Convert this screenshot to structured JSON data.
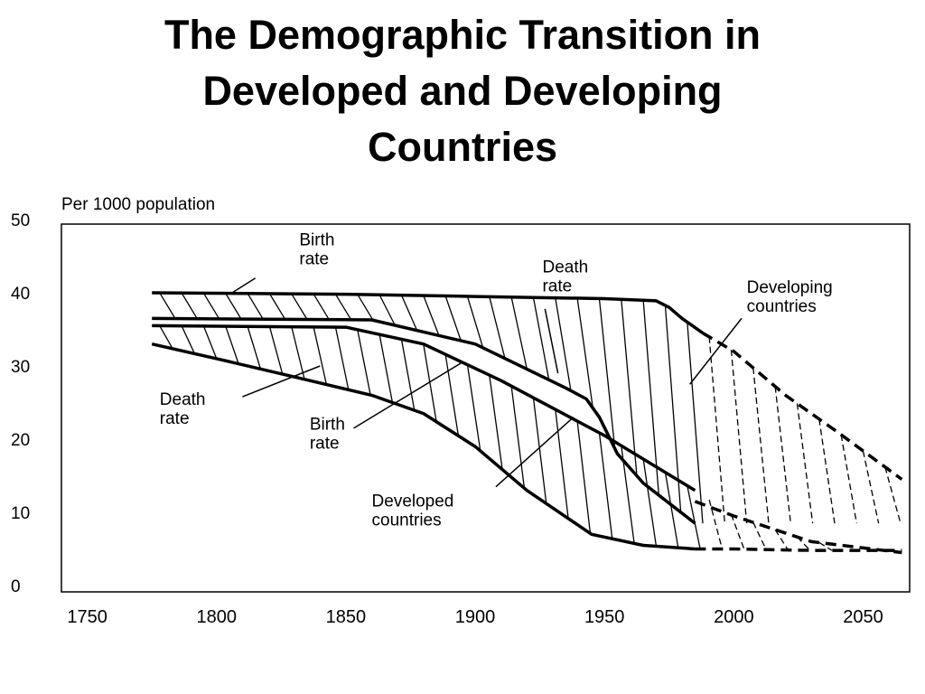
{
  "title_lines": [
    "The Demographic Transition in",
    "Developed and Developing",
    "Countries"
  ],
  "chart_data": {
    "type": "line",
    "title": "The Demographic Transition in Developed and Developing Countries",
    "ylabel": "Per 1000 population",
    "xlabel": "",
    "xlim": [
      1740,
      2068
    ],
    "ylim": [
      0,
      50
    ],
    "x_ticks": [
      1750,
      1800,
      1850,
      1900,
      1950,
      2000,
      2050
    ],
    "y_ticks": [
      0,
      10,
      20,
      30,
      40,
      50
    ],
    "grid": false,
    "legend": "none",
    "series": [
      {
        "group": "developing",
        "kind": "birth",
        "solid": [
          [
            1775,
            40
          ],
          [
            1850,
            39.8
          ],
          [
            1900,
            39.5
          ],
          [
            1950,
            39.2
          ],
          [
            1970,
            38.9
          ],
          [
            1975,
            38
          ],
          [
            1980,
            36.5
          ],
          [
            1988,
            34.5
          ]
        ],
        "dashed": [
          [
            1988,
            34.5
          ],
          [
            2000,
            32
          ],
          [
            2020,
            26
          ],
          [
            2040,
            21
          ],
          [
            2065,
            14.5
          ]
        ]
      },
      {
        "group": "developing",
        "kind": "death",
        "solid": [
          [
            1775,
            36.5
          ],
          [
            1860,
            36.3
          ],
          [
            1900,
            33
          ],
          [
            1935,
            27
          ],
          [
            1943,
            25.5
          ],
          [
            1948,
            23
          ],
          [
            1955,
            18
          ],
          [
            1965,
            14
          ],
          [
            1985,
            8.5
          ]
        ],
        "dashed": []
      },
      {
        "group": "developed",
        "kind": "birth",
        "solid": [
          [
            1775,
            35.5
          ],
          [
            1850,
            35.3
          ],
          [
            1880,
            33
          ],
          [
            1910,
            28
          ],
          [
            1950,
            20.5
          ],
          [
            1985,
            13
          ]
        ],
        "dashed": [
          [
            1985,
            11.5
          ],
          [
            2000,
            9.5
          ],
          [
            2030,
            6
          ],
          [
            2065,
            4.5
          ]
        ]
      },
      {
        "group": "developed",
        "kind": "death",
        "solid": [
          [
            1775,
            33
          ],
          [
            1800,
            31
          ],
          [
            1830,
            28.5
          ],
          [
            1860,
            26
          ],
          [
            1880,
            23.5
          ],
          [
            1900,
            19
          ],
          [
            1920,
            13
          ],
          [
            1945,
            7
          ],
          [
            1965,
            5.5
          ],
          [
            1985,
            5
          ]
        ],
        "dashed": [
          [
            1985,
            5
          ],
          [
            2000,
            5
          ],
          [
            2030,
            4.8
          ],
          [
            2065,
            4.8
          ]
        ]
      }
    ],
    "annotations": [
      {
        "id": "dv-birth",
        "lines": [
          "Birth",
          "rate"
        ],
        "at": [
          1832,
          46.5
        ],
        "leader": [
          [
            1815,
            42
          ],
          [
            1806,
            40
          ]
        ]
      },
      {
        "id": "dv-death",
        "lines": [
          "Death",
          "rate"
        ],
        "at": [
          1926,
          42.8
        ],
        "leader": [
          [
            1927,
            37.8
          ],
          [
            1932,
            29
          ]
        ]
      },
      {
        "id": "dv-countries",
        "lines": [
          "Developing",
          "countries"
        ],
        "at": [
          2005,
          40
        ],
        "leader": [
          [
            2003,
            36.5
          ],
          [
            1983,
            27.5
          ]
        ]
      },
      {
        "id": "d-death",
        "lines": [
          "Death",
          "rate"
        ],
        "at": [
          1778,
          24.7
        ],
        "leader": [
          [
            1810,
            25.8
          ],
          [
            1840,
            30
          ]
        ]
      },
      {
        "id": "d-birth",
        "lines": [
          "Birth",
          "rate"
        ],
        "at": [
          1836,
          21.3
        ],
        "leader": [
          [
            1853,
            21.5
          ],
          [
            1895,
            30.5
          ]
        ]
      },
      {
        "id": "d-countries",
        "lines": [
          "Developed",
          "countries"
        ],
        "at": [
          1860,
          10.8
        ],
        "leader": [
          [
            1908,
            13.5
          ],
          [
            1938,
            23
          ]
        ]
      }
    ]
  }
}
